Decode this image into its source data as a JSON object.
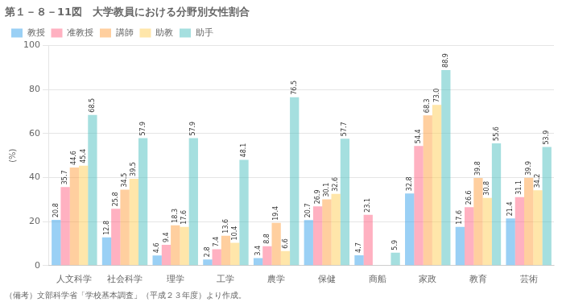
{
  "chart_data": {
    "type": "bar",
    "title": "第１－８－11図　大学教員における分野別女性割合",
    "annotations": [
      "（備考）文部科学省「学校基本調査」（平成２３年度）より作成。"
    ],
    "ylabel": "(%)",
    "categories": [
      "人文科学",
      "社会科学",
      "理学",
      "工学",
      "農学",
      "保健",
      "商船",
      "家政",
      "教育",
      "芸術"
    ],
    "series": [
      {
        "name": "教授",
        "values": [
          20.8,
          12.8,
          4.6,
          2.8,
          3.4,
          20.7,
          4.7,
          32.8,
          17.6,
          21.4
        ]
      },
      {
        "name": "准教授",
        "values": [
          35.7,
          25.8,
          9.4,
          7.4,
          8.8,
          26.9,
          23.1,
          54.4,
          26.6,
          31.1
        ]
      },
      {
        "name": "講師",
        "values": [
          44.6,
          34.5,
          18.3,
          13.6,
          19.4,
          30.1,
          0.0,
          68.3,
          39.8,
          39.9
        ],
        "value_labels": [
          "44.6",
          "34.5",
          "18.3",
          "13.6",
          "19.4",
          "30.1",
          null,
          "68.3",
          "39.8",
          "39.9"
        ]
      },
      {
        "name": "助教",
        "values": [
          45.4,
          39.5,
          17.6,
          10.4,
          6.6,
          32.6,
          0.0,
          73.0,
          30.8,
          34.2
        ],
        "value_labels": [
          "45.4",
          "39.5",
          "17.6",
          "10.4",
          "6.6",
          "32.6",
          null,
          "73.0",
          "30.8",
          "34.2"
        ]
      },
      {
        "name": "助手",
        "values": [
          68.5,
          57.9,
          57.9,
          48.1,
          76.5,
          57.7,
          5.9,
          88.9,
          55.6,
          53.9
        ]
      }
    ],
    "ylim": [
      0,
      100
    ],
    "yticks": [
      0,
      20,
      40,
      60,
      80,
      100
    ],
    "grid": true,
    "legend": "upper left",
    "data_labels": true
  }
}
